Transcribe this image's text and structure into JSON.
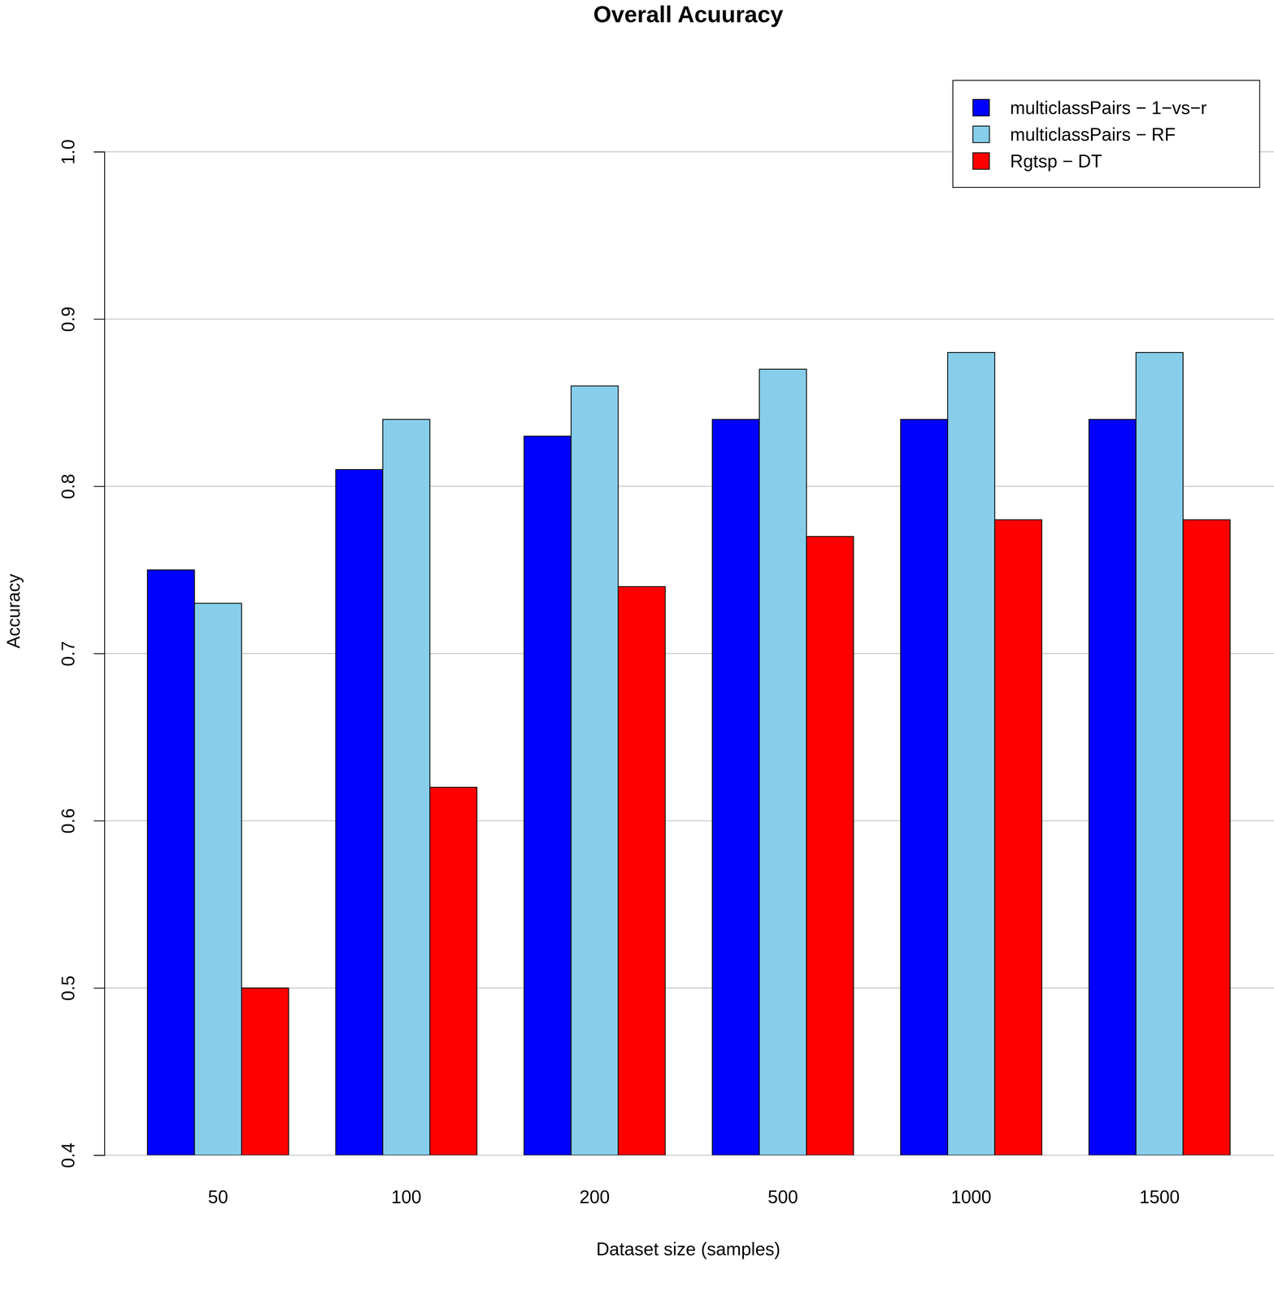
{
  "chart_data": {
    "type": "bar",
    "title": "Overall Acuuracy",
    "x_label": "Dataset size (samples)",
    "y_label": "Accuracy",
    "categories": [
      "50",
      "100",
      "200",
      "500",
      "1000",
      "1500"
    ],
    "series": [
      {
        "name": "multiclassPairs − 1−vs−r",
        "color": "#0000ff",
        "values": [
          0.75,
          0.81,
          0.83,
          0.84,
          0.84,
          0.84
        ]
      },
      {
        "name": "multiclassPairs − RF",
        "color": "#87ceeb",
        "values": [
          0.73,
          0.84,
          0.86,
          0.87,
          0.88,
          0.88
        ]
      },
      {
        "name": "Rgtsp − DT",
        "color": "#ff0000",
        "values": [
          0.5,
          0.62,
          0.74,
          0.77,
          0.78,
          0.78
        ]
      }
    ],
    "ylim": [
      0.4,
      1
    ],
    "yticks": [
      0.4,
      0.5,
      0.6,
      0.7,
      0.8,
      0.9,
      {
        "value": 1,
        "label": "1.0"
      }
    ],
    "grid": true,
    "legend": "top-right"
  }
}
